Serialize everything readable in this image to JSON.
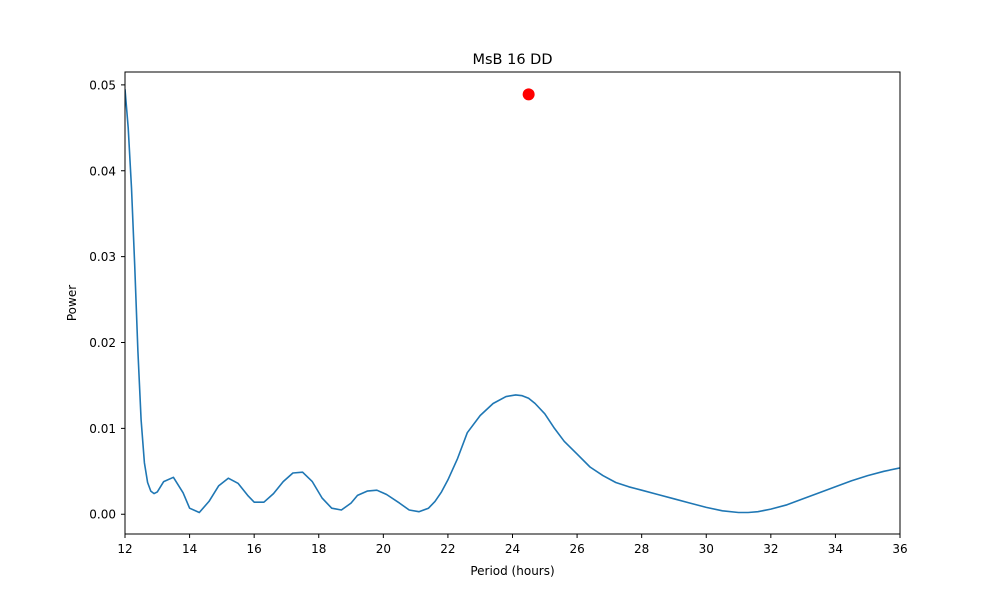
{
  "chart_data": {
    "type": "line",
    "title": "MsB 16 DD",
    "xlabel": "Period (hours)",
    "ylabel": "Power",
    "xlim": [
      12,
      36
    ],
    "ylim": [
      -0.0023,
      0.0515
    ],
    "grid": false,
    "x_ticks": [
      12,
      14,
      16,
      18,
      20,
      22,
      24,
      26,
      28,
      30,
      32,
      34,
      36
    ],
    "x_tick_labels": [
      "12",
      "14",
      "16",
      "18",
      "20",
      "22",
      "24",
      "26",
      "28",
      "30",
      "32",
      "34",
      "36"
    ],
    "y_ticks": [
      0.0,
      0.01,
      0.02,
      0.03,
      0.04,
      0.05
    ],
    "y_tick_labels": [
      "0.00",
      "0.01",
      "0.02",
      "0.03",
      "0.04",
      "0.05"
    ],
    "series": [
      {
        "color": "#1f77b4",
        "x": [
          12.0,
          12.1,
          12.2,
          12.3,
          12.4,
          12.5,
          12.6,
          12.7,
          12.8,
          12.9,
          13.0,
          13.2,
          13.5,
          13.8,
          14.0,
          14.3,
          14.6,
          14.9,
          15.2,
          15.5,
          15.8,
          16.0,
          16.3,
          16.6,
          16.9,
          17.2,
          17.5,
          17.8,
          18.1,
          18.4,
          18.7,
          19.0,
          19.2,
          19.5,
          19.8,
          20.1,
          20.5,
          20.8,
          21.1,
          21.4,
          21.6,
          21.8,
          22.0,
          22.3,
          22.6,
          23.0,
          23.4,
          23.8,
          24.1,
          24.3,
          24.5,
          24.7,
          25.0,
          25.3,
          25.6,
          26.0,
          26.4,
          26.8,
          27.2,
          27.6,
          28.0,
          28.5,
          29.0,
          29.5,
          30.0,
          30.5,
          31.0,
          31.3,
          31.6,
          32.0,
          32.5,
          33.0,
          33.5,
          34.0,
          34.5,
          35.0,
          35.5,
          36.0
        ],
        "y": [
          0.0495,
          0.045,
          0.038,
          0.029,
          0.019,
          0.011,
          0.006,
          0.0037,
          0.0027,
          0.0024,
          0.0026,
          0.0038,
          0.0043,
          0.0025,
          0.0007,
          0.0002,
          0.0015,
          0.0033,
          0.0042,
          0.0036,
          0.0022,
          0.0014,
          0.0014,
          0.0024,
          0.0038,
          0.0048,
          0.0049,
          0.0038,
          0.0019,
          0.0007,
          0.0005,
          0.0013,
          0.0022,
          0.0027,
          0.0028,
          0.0023,
          0.0013,
          0.0005,
          0.0003,
          0.0007,
          0.0015,
          0.0026,
          0.004,
          0.0065,
          0.0095,
          0.0115,
          0.0129,
          0.0137,
          0.0139,
          0.0138,
          0.0135,
          0.0129,
          0.0117,
          0.01,
          0.0085,
          0.007,
          0.0055,
          0.0045,
          0.0037,
          0.0032,
          0.0028,
          0.0023,
          0.0018,
          0.0013,
          0.0008,
          0.0004,
          0.0002,
          0.0002,
          0.0003,
          0.0006,
          0.0011,
          0.0018,
          0.0025,
          0.0032,
          0.0039,
          0.0045,
          0.005,
          0.0054
        ]
      }
    ],
    "markers": [
      {
        "x": 24.5,
        "y": 0.0489,
        "color": "#ff0000"
      }
    ]
  }
}
